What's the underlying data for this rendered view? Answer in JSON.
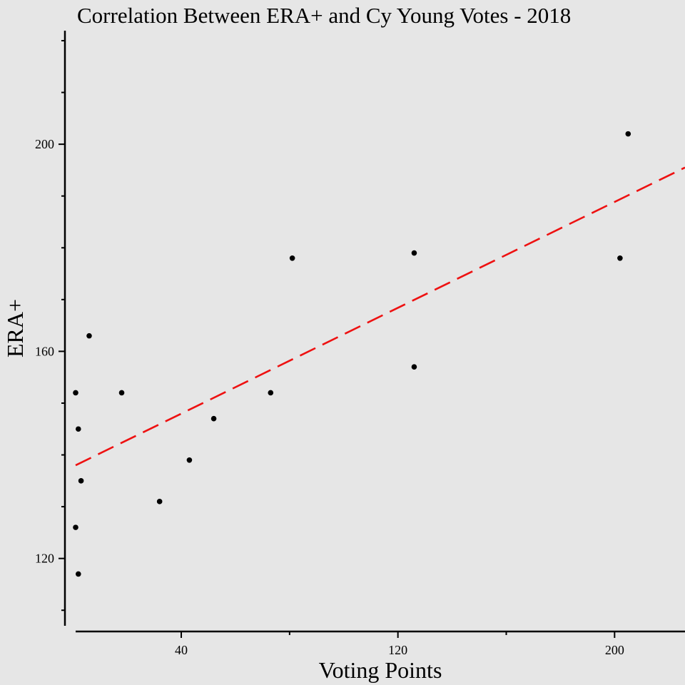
{
  "chart_data": {
    "type": "scatter",
    "title": "Correlation Between ERA+ and Cy Young Votes - 2018",
    "xlabel": "Voting Points",
    "ylabel": "ERA+",
    "xlim": [
      1,
      226
    ],
    "ylim": [
      107,
      220
    ],
    "x_ticks_major": [
      40,
      120,
      200
    ],
    "x_ticks_minor": [
      80,
      160
    ],
    "y_ticks_major": [
      120,
      160,
      200
    ],
    "y_ticks_minor": [
      110,
      130,
      140,
      150,
      170,
      180,
      190,
      210,
      220
    ],
    "points": [
      {
        "x": 1,
        "y": 152
      },
      {
        "x": 2,
        "y": 145
      },
      {
        "x": 1,
        "y": 126
      },
      {
        "x": 2,
        "y": 117
      },
      {
        "x": 3,
        "y": 135
      },
      {
        "x": 6,
        "y": 163
      },
      {
        "x": 18,
        "y": 152
      },
      {
        "x": 32,
        "y": 131
      },
      {
        "x": 43,
        "y": 139
      },
      {
        "x": 52,
        "y": 147
      },
      {
        "x": 73,
        "y": 152
      },
      {
        "x": 81,
        "y": 178
      },
      {
        "x": 126,
        "y": 179
      },
      {
        "x": 126,
        "y": 157
      },
      {
        "x": 202,
        "y": 178
      },
      {
        "x": 205,
        "y": 202
      }
    ],
    "trendline": {
      "x0": 1,
      "y0": 138,
      "x1": 226,
      "y1": 195.5,
      "style": "dashed",
      "color": "#ee1111"
    },
    "grid": false,
    "background": "#e6e6e6"
  }
}
